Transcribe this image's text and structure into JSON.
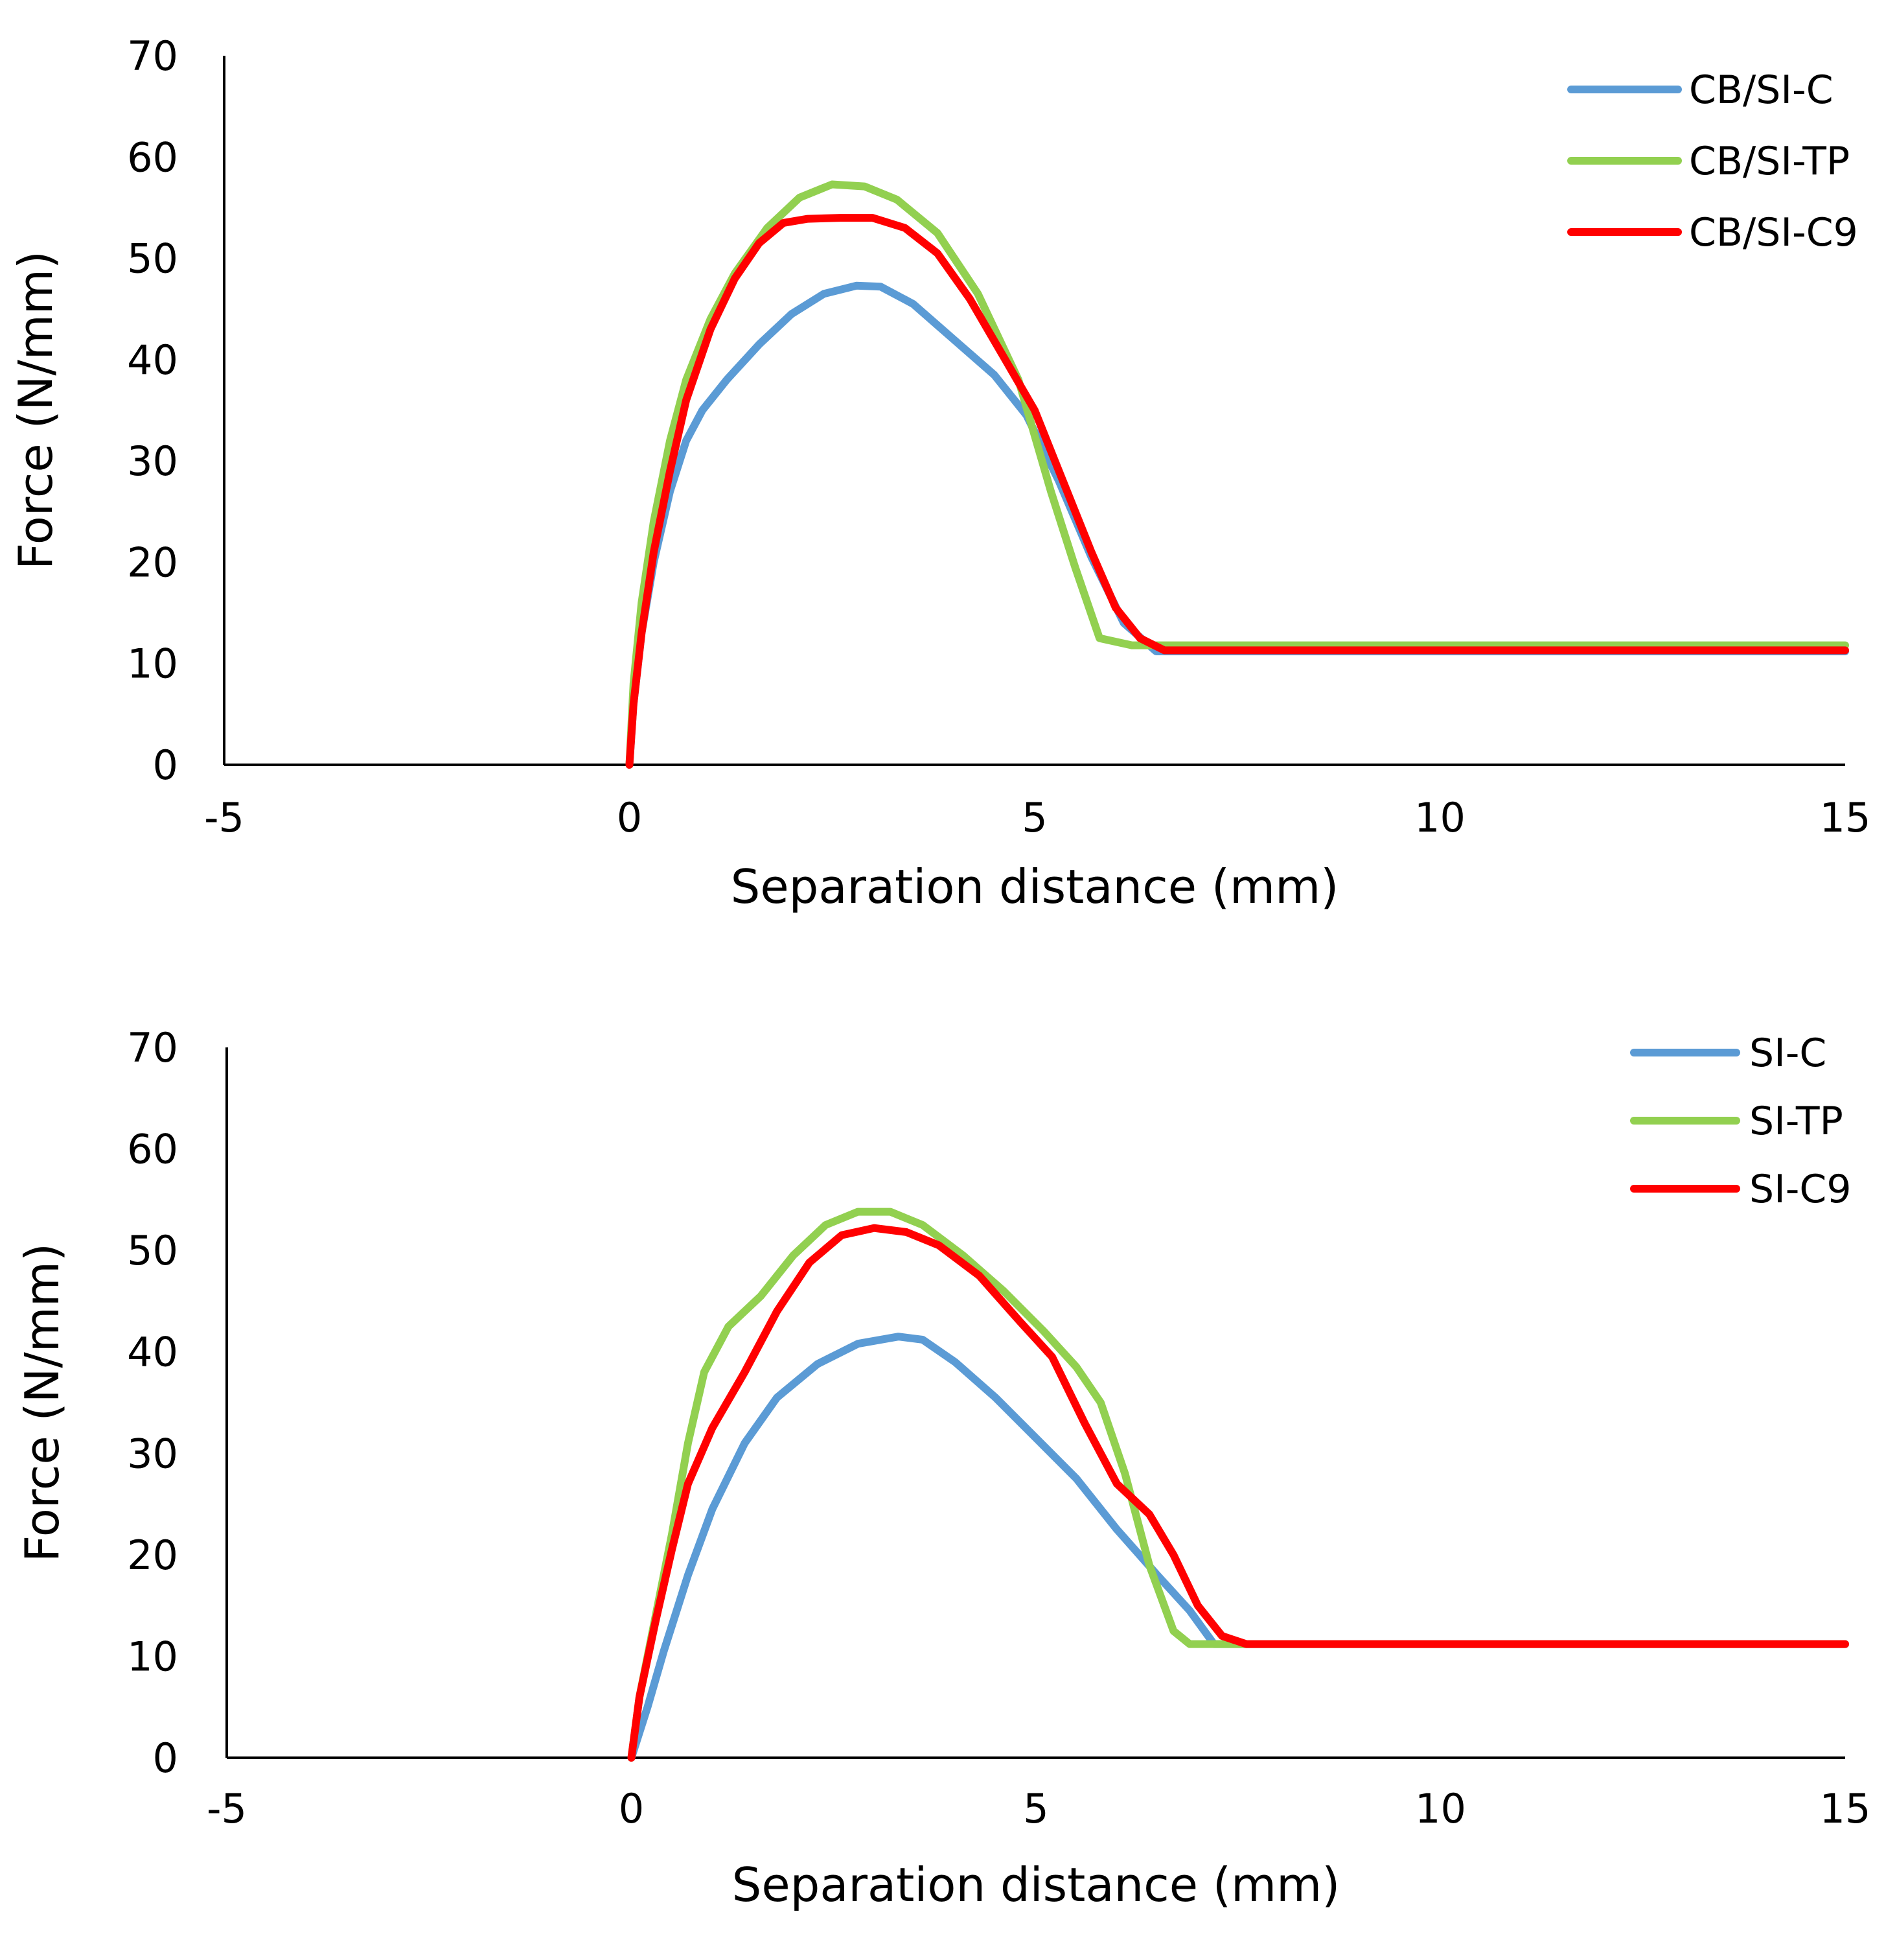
{
  "chart_data": [
    {
      "type": "line",
      "title": "",
      "xlabel": "Separation distance (mm)",
      "ylabel": "Force (N/mm)",
      "xlim": [
        -5,
        15
      ],
      "ylim": [
        0,
        70
      ],
      "xticks": [
        -5,
        0,
        5,
        10,
        15
      ],
      "yticks": [
        0,
        10,
        20,
        30,
        40,
        50,
        60,
        70
      ],
      "grid": false,
      "legend_position": "top-right",
      "series": [
        {
          "name": "CB/SI-C",
          "color": "#5b9bd5",
          "points": [
            [
              0,
              0
            ],
            [
              0.05,
              6
            ],
            [
              0.15,
              13
            ],
            [
              0.3,
              20
            ],
            [
              0.5,
              27
            ],
            [
              0.7,
              32
            ],
            [
              0.9,
              35
            ],
            [
              1.2,
              38
            ],
            [
              1.6,
              41.5
            ],
            [
              2.0,
              44.5
            ],
            [
              2.4,
              46.5
            ],
            [
              2.8,
              47.3
            ],
            [
              3.1,
              47.2
            ],
            [
              3.5,
              45.5
            ],
            [
              4.0,
              42
            ],
            [
              4.5,
              38.5
            ],
            [
              4.9,
              34.5
            ],
            [
              5.3,
              28
            ],
            [
              5.7,
              20.5
            ],
            [
              6.1,
              14
            ],
            [
              6.5,
              11.2
            ],
            [
              7,
              11.2
            ],
            [
              10,
              11.2
            ],
            [
              15,
              11.2
            ]
          ]
        },
        {
          "name": "CB/SI-TP",
          "color": "#92d050",
          "points": [
            [
              0,
              0
            ],
            [
              0.05,
              8
            ],
            [
              0.15,
              16
            ],
            [
              0.3,
              24
            ],
            [
              0.5,
              32
            ],
            [
              0.7,
              38
            ],
            [
              1.0,
              44
            ],
            [
              1.3,
              48.5
            ],
            [
              1.7,
              53
            ],
            [
              2.1,
              56
            ],
            [
              2.5,
              57.3
            ],
            [
              2.9,
              57.1
            ],
            [
              3.3,
              55.8
            ],
            [
              3.8,
              52.5
            ],
            [
              4.3,
              46.5
            ],
            [
              4.8,
              38
            ],
            [
              5.2,
              27
            ],
            [
              5.5,
              19.5
            ],
            [
              5.8,
              12.5
            ],
            [
              6.2,
              11.8
            ],
            [
              8,
              11.8
            ],
            [
              15,
              11.8
            ]
          ]
        },
        {
          "name": "CB/SI-C9",
          "color": "#ff0000",
          "points": [
            [
              0,
              0
            ],
            [
              0.05,
              6
            ],
            [
              0.15,
              13
            ],
            [
              0.3,
              21
            ],
            [
              0.5,
              29
            ],
            [
              0.7,
              36
            ],
            [
              1.0,
              43
            ],
            [
              1.3,
              48
            ],
            [
              1.6,
              51.5
            ],
            [
              1.9,
              53.5
            ],
            [
              2.2,
              53.9
            ],
            [
              2.6,
              54
            ],
            [
              3.0,
              54
            ],
            [
              3.4,
              53
            ],
            [
              3.8,
              50.5
            ],
            [
              4.2,
              46
            ],
            [
              4.6,
              40.5
            ],
            [
              5.0,
              35
            ],
            [
              5.3,
              29
            ],
            [
              5.7,
              21
            ],
            [
              6.0,
              15.5
            ],
            [
              6.3,
              12.5
            ],
            [
              6.6,
              11.3
            ],
            [
              7,
              11.3
            ],
            [
              10,
              11.3
            ],
            [
              15,
              11.3
            ]
          ]
        }
      ]
    },
    {
      "type": "line",
      "title": "",
      "xlabel": "Separation distance (mm)",
      "ylabel": "Force (N/mm)",
      "xlim": [
        -5,
        15
      ],
      "ylim": [
        0,
        70
      ],
      "xticks": [
        -5,
        0,
        5,
        10,
        15
      ],
      "yticks": [
        0,
        10,
        20,
        30,
        40,
        50,
        60,
        70
      ],
      "grid": false,
      "legend_position": "top-right",
      "series": [
        {
          "name": "SI-C",
          "color": "#5b9bd5",
          "points": [
            [
              0,
              0
            ],
            [
              0.2,
              5
            ],
            [
              0.4,
              10.5
            ],
            [
              0.7,
              18
            ],
            [
              1.0,
              24.5
            ],
            [
              1.4,
              31
            ],
            [
              1.8,
              35.5
            ],
            [
              2.3,
              38.8
            ],
            [
              2.8,
              40.8
            ],
            [
              3.3,
              41.5
            ],
            [
              3.6,
              41.2
            ],
            [
              4.0,
              39
            ],
            [
              4.5,
              35.5
            ],
            [
              5.0,
              31.5
            ],
            [
              5.5,
              27.5
            ],
            [
              6.0,
              22.5
            ],
            [
              6.5,
              18
            ],
            [
              6.9,
              14.5
            ],
            [
              7.2,
              11.2
            ],
            [
              8,
              11.2
            ],
            [
              15,
              11.2
            ]
          ]
        },
        {
          "name": "SI-TP",
          "color": "#92d050",
          "points": [
            [
              0,
              0
            ],
            [
              0.1,
              6
            ],
            [
              0.3,
              14
            ],
            [
              0.5,
              22
            ],
            [
              0.7,
              31
            ],
            [
              0.9,
              38
            ],
            [
              1.2,
              42.5
            ],
            [
              1.6,
              45.5
            ],
            [
              2.0,
              49.5
            ],
            [
              2.4,
              52.5
            ],
            [
              2.8,
              53.8
            ],
            [
              3.2,
              53.8
            ],
            [
              3.6,
              52.5
            ],
            [
              4.1,
              49.5
            ],
            [
              4.6,
              46
            ],
            [
              5.1,
              42
            ],
            [
              5.5,
              38.5
            ],
            [
              5.8,
              35
            ],
            [
              6.1,
              28
            ],
            [
              6.4,
              19
            ],
            [
              6.7,
              12.5
            ],
            [
              6.9,
              11.2
            ],
            [
              8,
              11.2
            ],
            [
              15,
              11.2
            ]
          ]
        },
        {
          "name": "SI-C9",
          "color": "#ff0000",
          "points": [
            [
              0,
              0
            ],
            [
              0.1,
              6
            ],
            [
              0.3,
              13.5
            ],
            [
              0.5,
              20.5
            ],
            [
              0.7,
              27
            ],
            [
              1.0,
              32.5
            ],
            [
              1.4,
              38
            ],
            [
              1.8,
              44
            ],
            [
              2.2,
              48.8
            ],
            [
              2.6,
              51.5
            ],
            [
              3.0,
              52.2
            ],
            [
              3.4,
              51.8
            ],
            [
              3.8,
              50.5
            ],
            [
              4.3,
              47.5
            ],
            [
              4.8,
              43
            ],
            [
              5.2,
              39.5
            ],
            [
              5.6,
              33
            ],
            [
              6.0,
              27
            ],
            [
              6.4,
              24
            ],
            [
              6.7,
              20
            ],
            [
              7.0,
              15
            ],
            [
              7.3,
              12
            ],
            [
              7.6,
              11.2
            ],
            [
              8,
              11.2
            ],
            [
              15,
              11.2
            ]
          ]
        }
      ]
    }
  ]
}
